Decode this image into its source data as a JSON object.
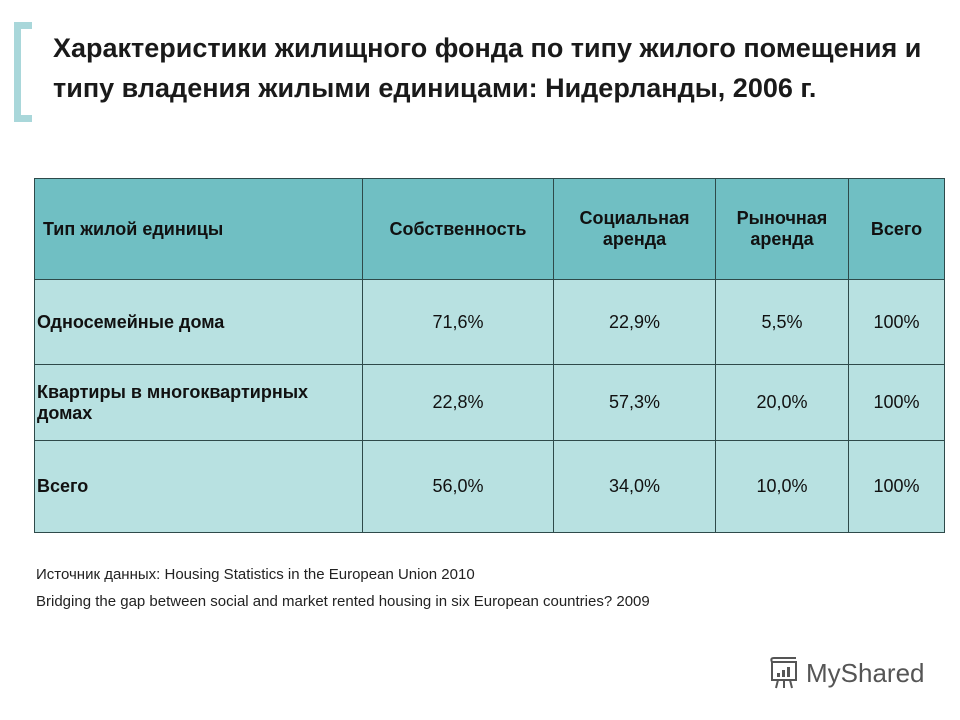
{
  "title": "Характеристики жилищного фонда по типу жилого помещения и типу владения жилыми единицами: Нидерланды, 2006 г.",
  "table": {
    "headers": [
      "Тип жилой единицы",
      "Собственность",
      "Социальная аренда",
      "Рыночная аренда",
      "Всего"
    ],
    "rows": [
      {
        "label": "Односемейные дома",
        "values": [
          "71,6%",
          "22,9%",
          "5,5%",
          "100%"
        ]
      },
      {
        "label": "Квартиры в многоквартирных домах",
        "values": [
          "22,8%",
          "57,3%",
          "20,0%",
          "100%"
        ]
      },
      {
        "label": "Всего",
        "values": [
          "56,0%",
          "34,0%",
          "10,0%",
          "100%"
        ]
      }
    ]
  },
  "sources": [
    "Источник данных: Housing Statistics in the European Union 2010",
    "Bridging the gap between social and market rented housing in six European countries? 2009"
  ],
  "logo": "MyShared",
  "colors": {
    "header": "#70bfc3",
    "body": "#b8e1e1",
    "bracket": "#a9d7da"
  }
}
